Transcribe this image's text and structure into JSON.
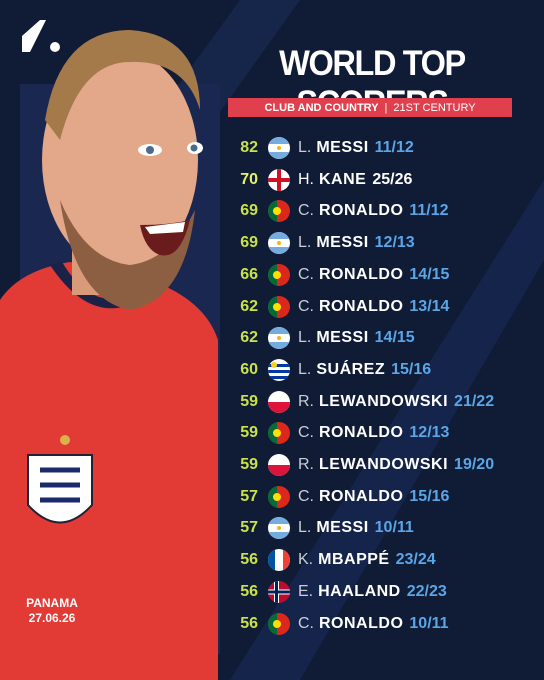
{
  "title": "WORLD TOP SCORERS",
  "subtitle": {
    "left": "CLUB AND COUNTRY",
    "separator": "|",
    "right": "21ST CENTURY"
  },
  "photo_caption": {
    "opponent": "PANAMA",
    "date": "27.06.26"
  },
  "rows": [
    {
      "goals": "82",
      "initial": "L.",
      "surname": "MESSI",
      "season": "11/12"
    },
    {
      "goals": "70",
      "initial": "H.",
      "surname": "KANE",
      "season": "25/26",
      "highlight": true
    },
    {
      "goals": "69",
      "initial": "C.",
      "surname": "RONALDO",
      "season": "11/12"
    },
    {
      "goals": "69",
      "initial": "L.",
      "surname": "MESSI",
      "season": "12/13"
    },
    {
      "goals": "66",
      "initial": "C.",
      "surname": "RONALDO",
      "season": "14/15"
    },
    {
      "goals": "62",
      "initial": "C.",
      "surname": "RONALDO",
      "season": "13/14"
    },
    {
      "goals": "62",
      "initial": "L.",
      "surname": "MESSI",
      "season": "14/15"
    },
    {
      "goals": "60",
      "initial": "L.",
      "surname": "SUÁREZ",
      "season": "15/16"
    },
    {
      "goals": "59",
      "initial": "R.",
      "surname": "LEWANDOWSKI",
      "season": "21/22"
    },
    {
      "goals": "59",
      "initial": "C.",
      "surname": "RONALDO",
      "season": "12/13"
    },
    {
      "goals": "59",
      "initial": "R.",
      "surname": "LEWANDOWSKI",
      "season": "19/20"
    },
    {
      "goals": "57",
      "initial": "C.",
      "surname": "RONALDO",
      "season": "15/16"
    },
    {
      "goals": "57",
      "initial": "L.",
      "surname": "MESSI",
      "season": "10/11"
    },
    {
      "goals": "56",
      "initial": "K.",
      "surname": "MBAPPÉ",
      "season": "23/24"
    },
    {
      "goals": "56",
      "initial": "E.",
      "surname": "HAALAND",
      "season": "22/23"
    },
    {
      "goals": "56",
      "initial": "C.",
      "surname": "RONALDO",
      "season": "10/11"
    }
  ]
}
